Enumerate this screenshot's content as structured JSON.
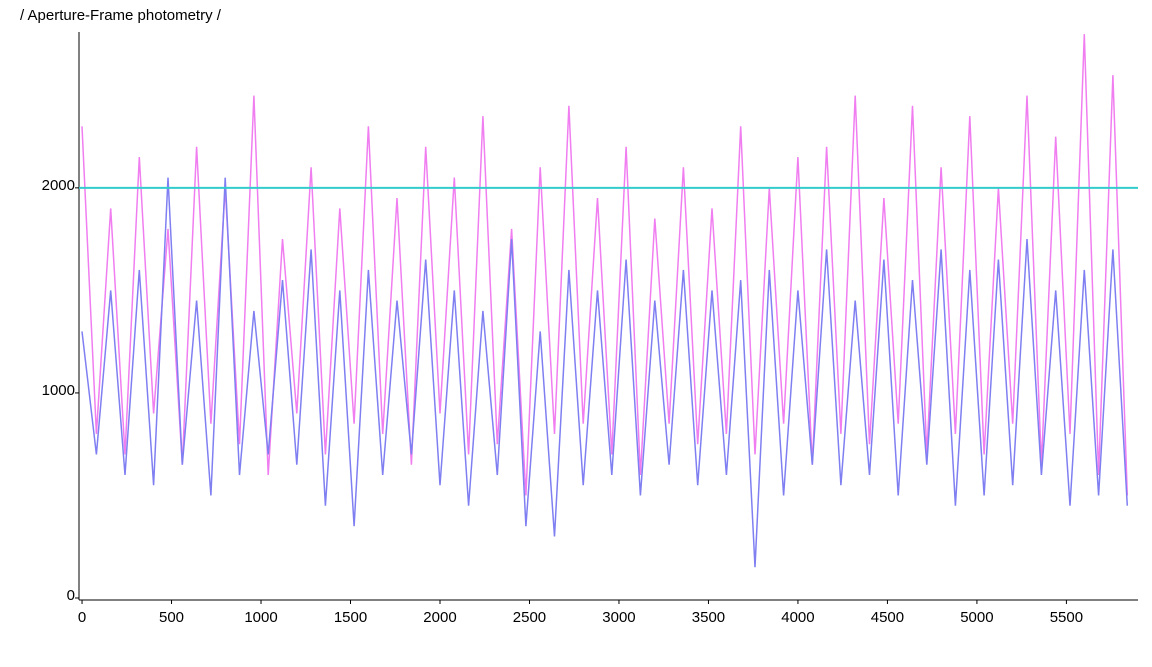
{
  "chart_data": {
    "type": "line",
    "title": "/ Aperture-Frame photometry /",
    "x": [
      0,
      80,
      160,
      240,
      320,
      400,
      480,
      560,
      640,
      720,
      800,
      880,
      960,
      1040,
      1120,
      1200,
      1280,
      1360,
      1440,
      1520,
      1600,
      1680,
      1760,
      1840,
      1920,
      2000,
      2080,
      2160,
      2240,
      2320,
      2400,
      2480,
      2560,
      2640,
      2720,
      2800,
      2880,
      2960,
      3040,
      3120,
      3200,
      3280,
      3360,
      3440,
      3520,
      3600,
      3680,
      3760,
      3840,
      3920,
      4000,
      4080,
      4160,
      4240,
      4320,
      4400,
      4480,
      4560,
      4640,
      4720,
      4800,
      4880,
      4960,
      5040,
      5120,
      5200,
      5280,
      5360,
      5440,
      5520,
      5600,
      5680,
      5760,
      5840
    ],
    "series": [
      {
        "color": "#f07ef0",
        "values": [
          2300,
          800,
          1900,
          700,
          2150,
          900,
          1800,
          650,
          2200,
          850,
          2000,
          750,
          2450,
          600,
          1750,
          900,
          2100,
          700,
          1900,
          850,
          2300,
          800,
          1950,
          650,
          2200,
          900,
          2050,
          700,
          2350,
          750,
          1800,
          500,
          2100,
          800,
          2400,
          850,
          1950,
          700,
          2200,
          600,
          1850,
          850,
          2100,
          750,
          1900,
          800,
          2300,
          700,
          2000,
          850,
          2150,
          650,
          2200,
          800,
          2450,
          750,
          1950,
          850,
          2400,
          700,
          2100,
          800,
          2350,
          700,
          2000,
          850,
          2450,
          650,
          2250,
          800,
          2750,
          600,
          2550,
          500
        ]
      },
      {
        "color": "#7f7ff2",
        "values": [
          1300,
          700,
          1500,
          600,
          1600,
          550,
          2050,
          650,
          1450,
          500,
          2050,
          600,
          1400,
          700,
          1550,
          650,
          1700,
          450,
          1500,
          350,
          1600,
          600,
          1450,
          700,
          1650,
          550,
          1500,
          450,
          1400,
          600,
          1750,
          350,
          1300,
          300,
          1600,
          550,
          1500,
          600,
          1650,
          500,
          1450,
          650,
          1600,
          550,
          1500,
          600,
          1550,
          150,
          1600,
          500,
          1500,
          650,
          1700,
          550,
          1450,
          600,
          1650,
          500,
          1550,
          650,
          1700,
          450,
          1600,
          500,
          1650,
          550,
          1750,
          600,
          1500,
          450,
          1600,
          500,
          1700,
          450
        ]
      }
    ],
    "hlines": [
      {
        "y": 2000,
        "color": "#33cccc"
      }
    ],
    "xlim": [
      -17,
      5900
    ],
    "ylim": [
      0,
      2760
    ],
    "xticks": [
      0,
      500,
      1000,
      1500,
      2000,
      2500,
      3000,
      3500,
      4000,
      4500,
      5000,
      5500
    ],
    "yticks": [
      0,
      1000,
      2000
    ]
  }
}
